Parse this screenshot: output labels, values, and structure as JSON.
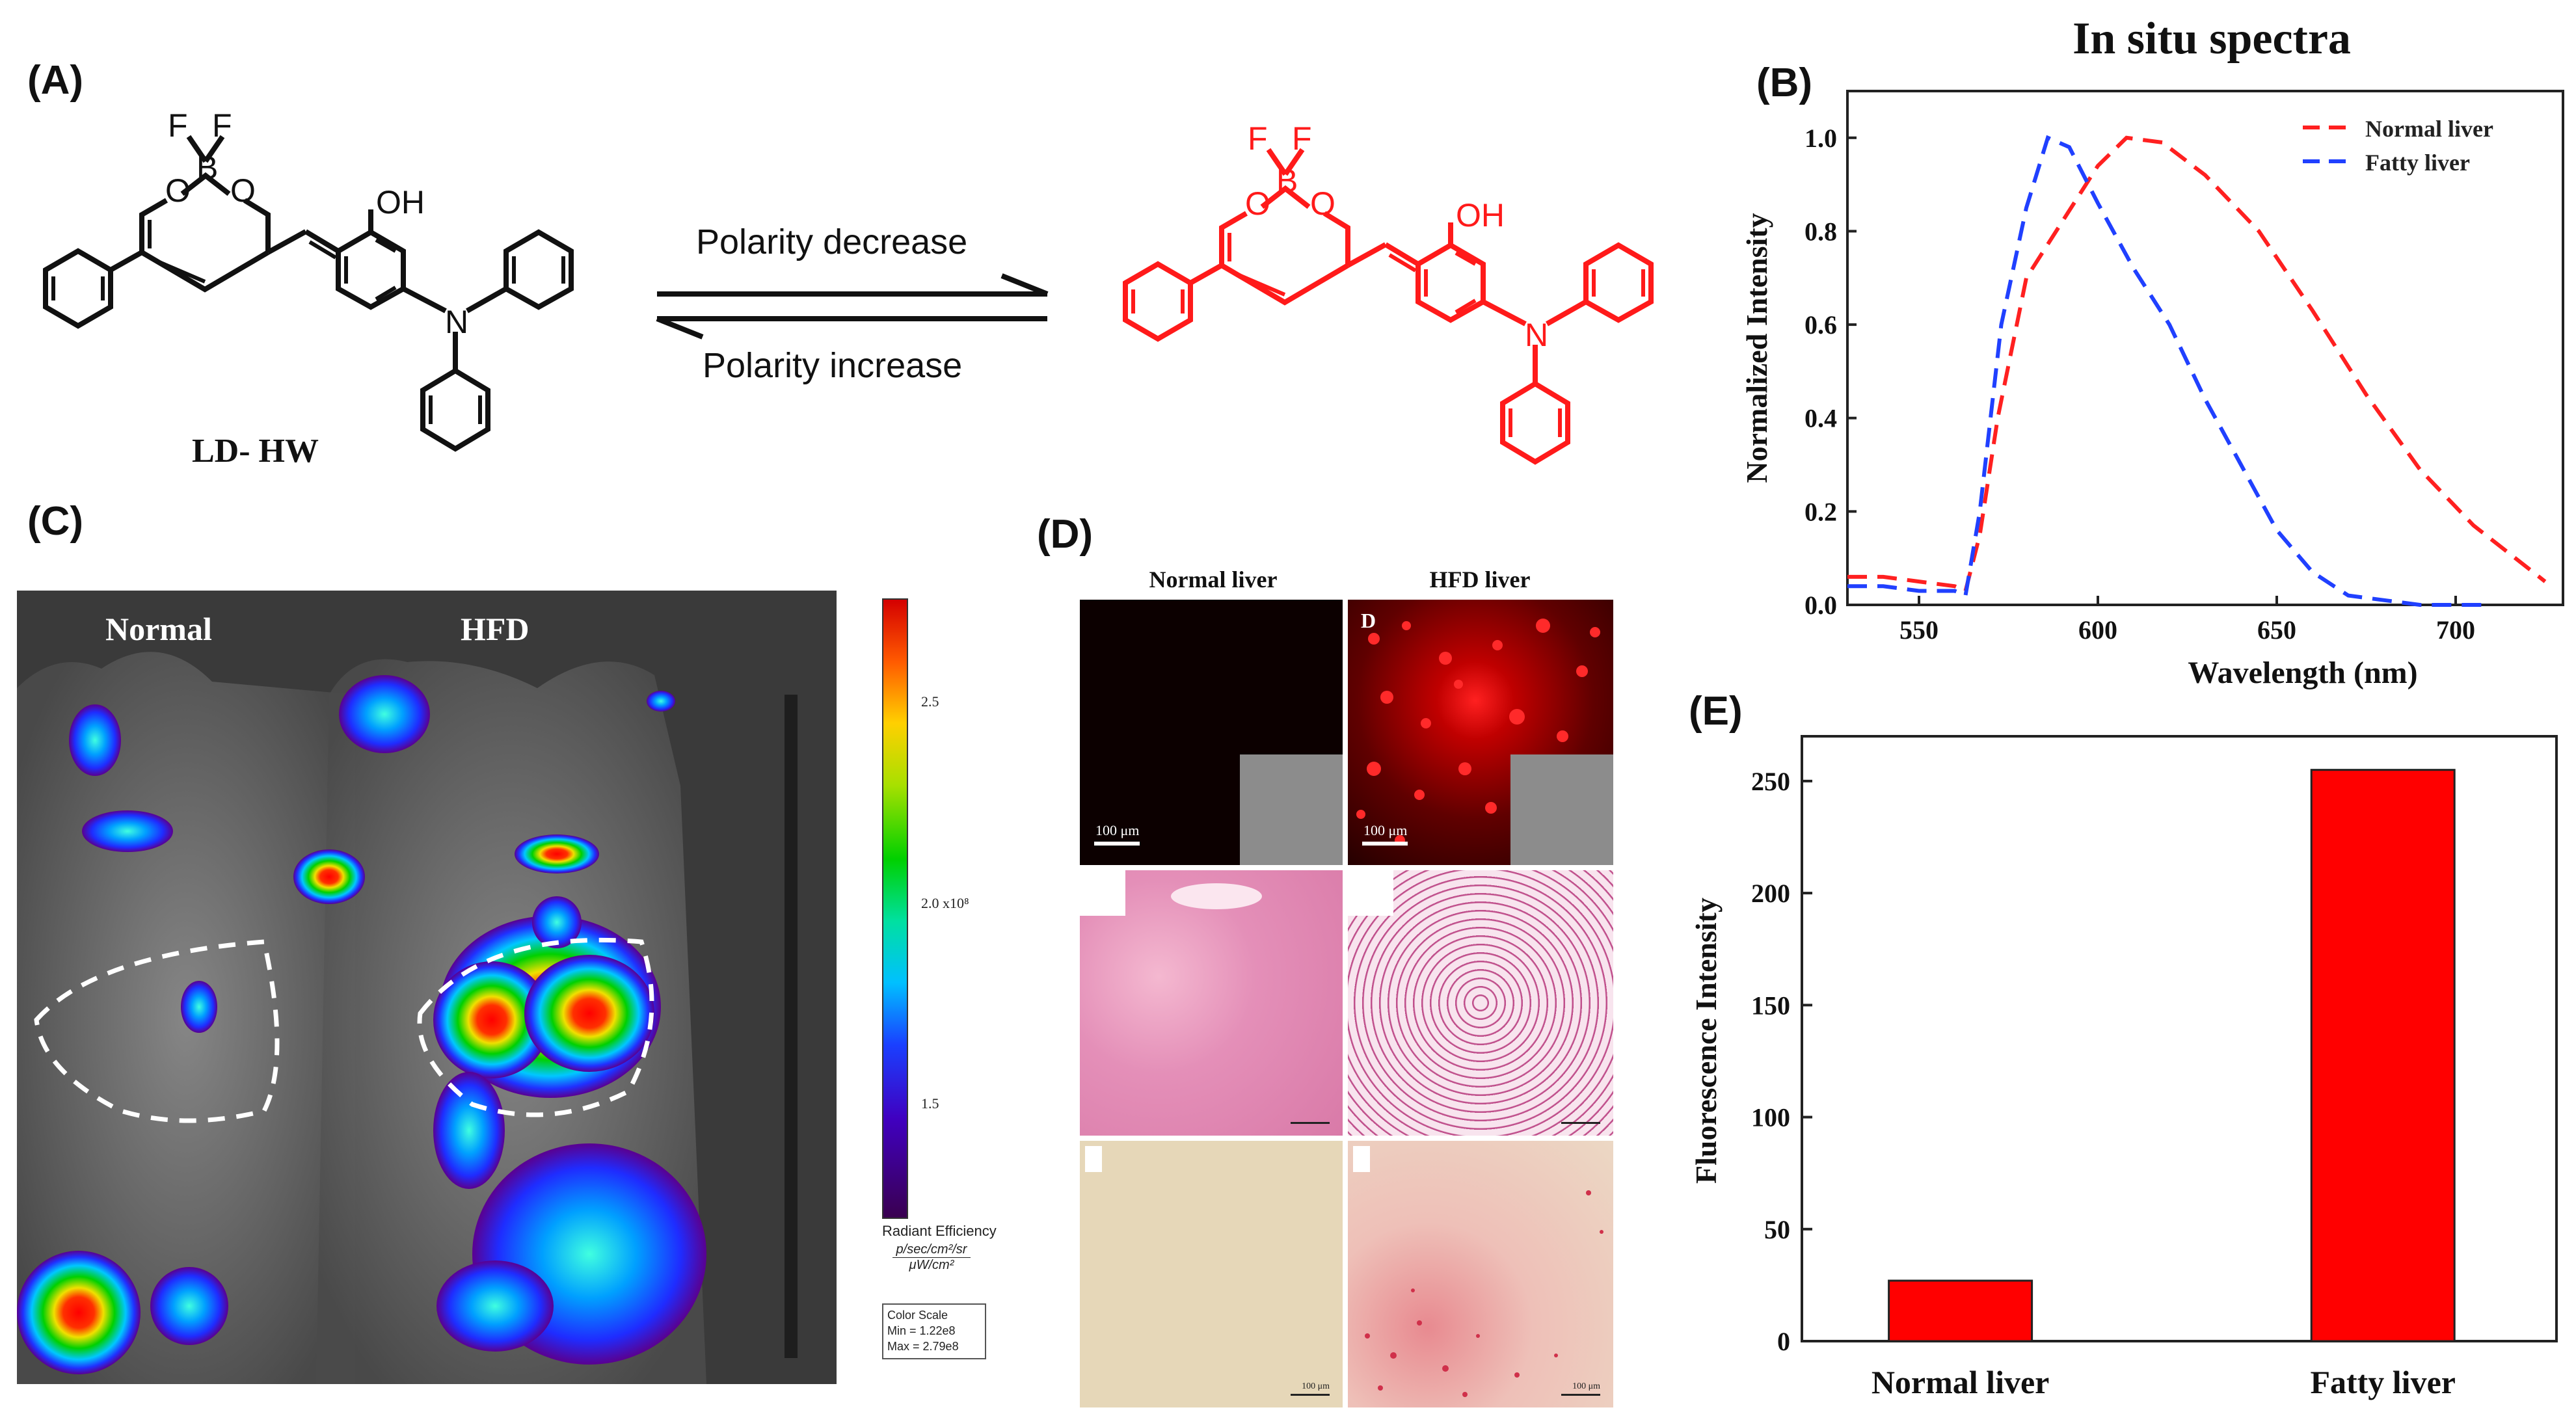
{
  "panels": {
    "a": {
      "label": "(A)",
      "compound_name": "LD- HW",
      "arrow_top": "Polarity decrease",
      "arrow_bottom": "Polarity increase",
      "atoms": {
        "F": "F",
        "B": "B",
        "O": "O",
        "OH": "OH",
        "N": "N"
      }
    },
    "b": {
      "label": "(B)"
    },
    "c": {
      "label": "(C)",
      "group_normal": "Normal",
      "group_hfd": "HFD",
      "scale_ticks": [
        "2.5",
        "2.0",
        "1.5"
      ],
      "scale_exp": "x10⁸",
      "scale_title": "Radiant Efficiency",
      "scale_unit_num": "p/sec/cm²/sr",
      "scale_unit_den": "μW/cm²",
      "colorscale_title": "Color Scale",
      "colorscale_min": "Min = 1.22e8",
      "colorscale_max": "Max = 2.79e8",
      "colors": {
        "high": "#d40000",
        "mid": "#00d000",
        "low": "#3a0050"
      }
    },
    "d": {
      "label": "(D)",
      "col_normal": "Normal liver",
      "col_hfd": "HFD liver",
      "scalebar_fluor": "100 μm",
      "scalebar_histo": "100 μm",
      "letter": "D"
    },
    "e": {
      "label": "(E)"
    }
  },
  "chart_data": [
    {
      "type": "line",
      "title": "In situ spectra",
      "xlabel": "Wavelength (nm)",
      "ylabel": "Normalized Intensity",
      "xlim": [
        530,
        730
      ],
      "ylim": [
        0,
        1.1
      ],
      "xticks": [
        "550",
        "600",
        "650",
        "700"
      ],
      "yticks": [
        "0.0",
        "0.2",
        "0.4",
        "0.6",
        "0.8",
        "1.0"
      ],
      "legend_position": "top-right",
      "series": [
        {
          "name": "Normal liver",
          "color": "#ff2020",
          "x": [
            530,
            540,
            550,
            560,
            563,
            567,
            572,
            580,
            590,
            600,
            608,
            618,
            630,
            645,
            660,
            675,
            690,
            705,
            720,
            725
          ],
          "y": [
            0.06,
            0.06,
            0.05,
            0.04,
            0.03,
            0.15,
            0.4,
            0.7,
            0.82,
            0.94,
            1.0,
            0.99,
            0.92,
            0.8,
            0.63,
            0.45,
            0.29,
            0.17,
            0.08,
            0.05
          ]
        },
        {
          "name": "Fatty liver",
          "color": "#2040ff",
          "x": [
            530,
            540,
            550,
            560,
            563,
            567,
            573,
            580,
            586,
            592,
            600,
            610,
            620,
            630,
            640,
            650,
            660,
            670,
            680,
            690,
            700,
            710
          ],
          "y": [
            0.04,
            0.04,
            0.03,
            0.03,
            0.02,
            0.2,
            0.6,
            0.85,
            1.0,
            0.98,
            0.86,
            0.72,
            0.6,
            0.44,
            0.3,
            0.16,
            0.07,
            0.02,
            0.01,
            0.0,
            0.0,
            0.0
          ]
        }
      ]
    },
    {
      "type": "bar",
      "xlabel": "",
      "ylabel": "Fluorescence Intensity",
      "categories": [
        "Normal liver",
        "Fatty liver"
      ],
      "values": [
        27,
        255
      ],
      "ylim": [
        0,
        270
      ],
      "yticks": [
        "0",
        "50",
        "100",
        "150",
        "200",
        "250"
      ],
      "bar_color": "#ff0000"
    }
  ]
}
